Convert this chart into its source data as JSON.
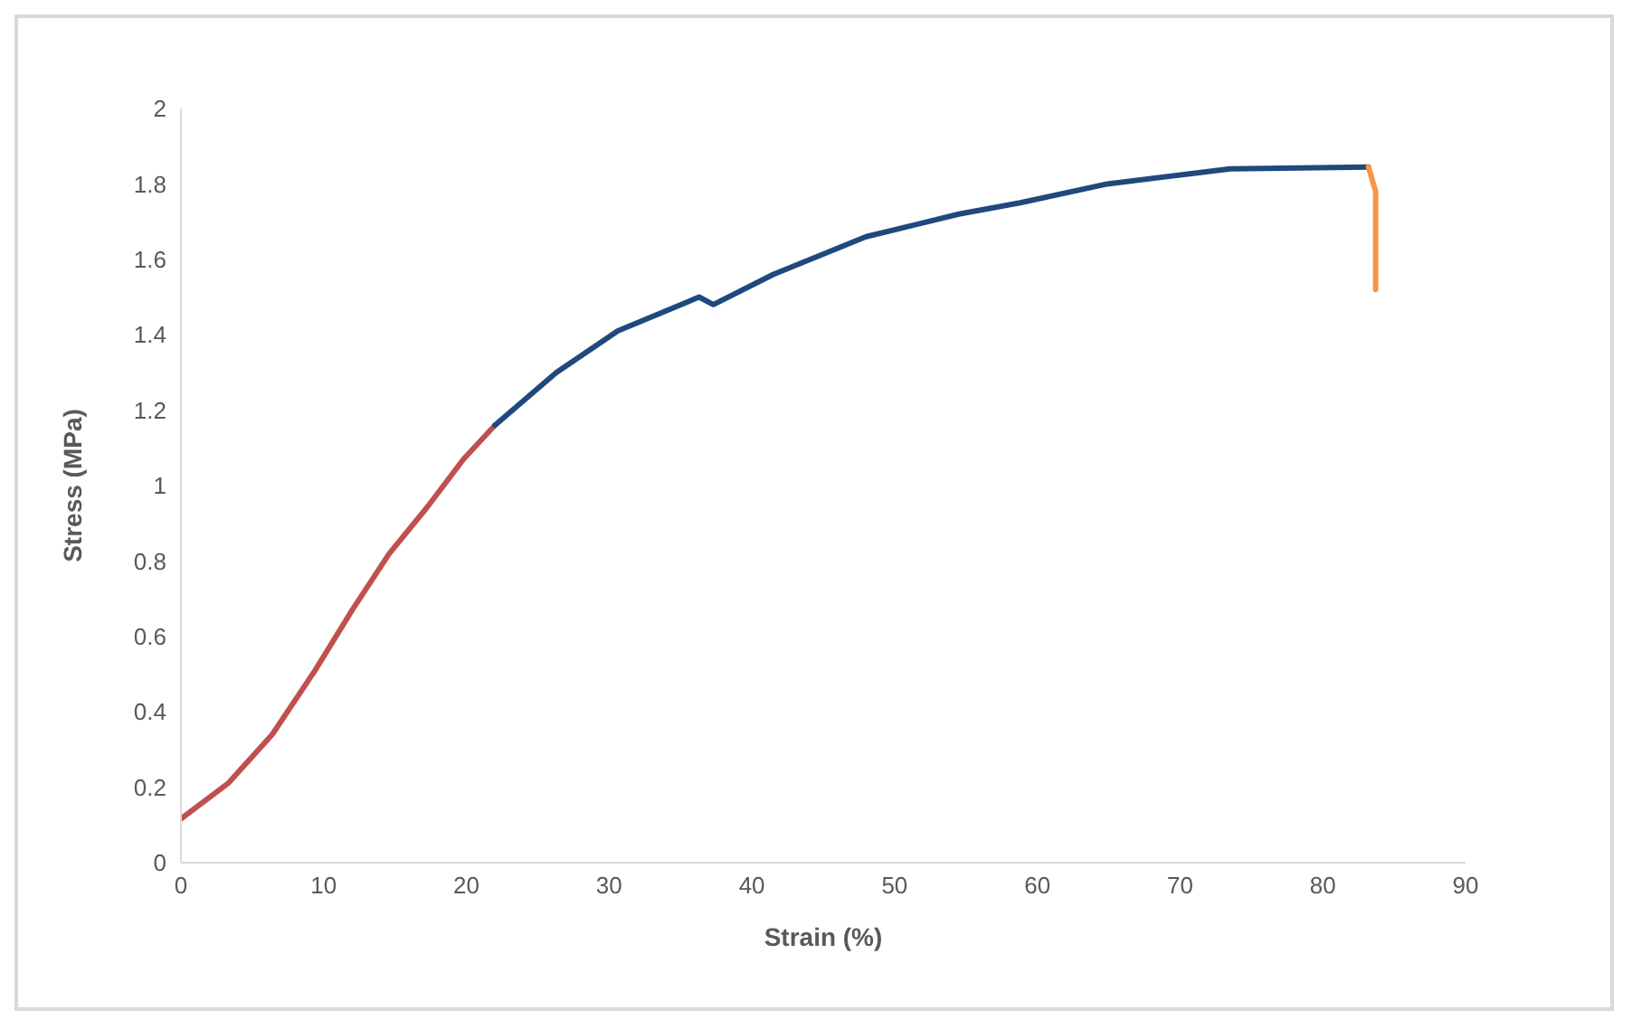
{
  "chart_data": {
    "type": "line",
    "xlabel": "Strain (%)",
    "ylabel": "Stress (MPa)",
    "xlim": [
      0,
      90
    ],
    "xticks": [
      0,
      10,
      20,
      30,
      40,
      50,
      60,
      70,
      80,
      90
    ],
    "ylim": [
      0,
      2
    ],
    "yticks": [
      0,
      0.2,
      0.4,
      0.6,
      0.8,
      1,
      1.2,
      1.4,
      1.6,
      1.8,
      2
    ],
    "grid": false,
    "legend": false,
    "marker": "none",
    "line_style": "solid",
    "series": [
      {
        "color": "#c0504d",
        "x": [
          0,
          3.3,
          6.4,
          9.4,
          12,
          14.6,
          17.2,
          19.8,
          22
        ],
        "values": [
          0.116,
          0.21,
          0.34,
          0.51,
          0.67,
          0.82,
          0.94,
          1.07,
          1.16
        ]
      },
      {
        "color": "#1f497d",
        "x": [
          22,
          26.3,
          30.6,
          36.3,
          37.3,
          41.5,
          48,
          54.5,
          58.8,
          64.9,
          73.5,
          83.2
        ],
        "values": [
          1.16,
          1.3,
          1.41,
          1.5,
          1.48,
          1.56,
          1.66,
          1.72,
          1.75,
          1.8,
          1.84,
          1.845
        ]
      },
      {
        "color": "#f79646",
        "x": [
          83.2,
          83.7,
          83.7
        ],
        "values": [
          1.845,
          1.78,
          1.52
        ]
      }
    ]
  }
}
